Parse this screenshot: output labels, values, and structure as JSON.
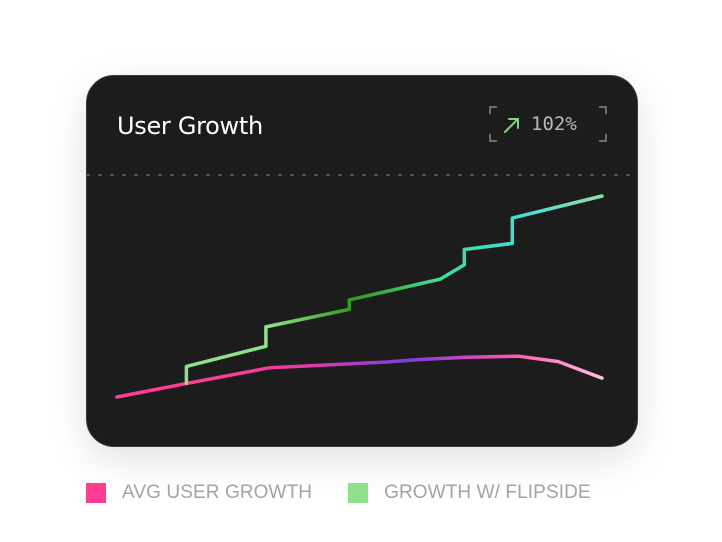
{
  "card": {
    "title": "User Growth",
    "badge": {
      "value": "102%",
      "icon": "arrow-up-right-icon",
      "icon_color": "#7ed67e",
      "frame_color": "#8a8a8a"
    }
  },
  "legend": {
    "items": [
      {
        "label": "AVG USER GROWTH",
        "color": "#ff3d95"
      },
      {
        "label": "GROWTH W/ FLIPSIDE",
        "color": "#8fe08a"
      }
    ]
  },
  "chart_data": {
    "type": "line",
    "title": "User Growth",
    "xlabel": "",
    "ylabel": "",
    "grid": false,
    "legend_placement": "bottom-left",
    "xlim": [
      0,
      100
    ],
    "ylim": [
      0,
      100
    ],
    "series": [
      {
        "name": "AVG USER GROWTH",
        "color": "#ff3d95",
        "gradient": [
          "#ff3d95",
          "#ff3d95",
          "#e23aa8",
          "#7a3ee0",
          "#ff4fb0",
          "#ffc0dc"
        ],
        "points": [
          [
            0,
            0
          ],
          [
            14.5,
            6.8
          ],
          [
            31.5,
            14.6
          ],
          [
            55.6,
            17.4
          ],
          [
            62,
            18.6
          ],
          [
            72,
            19.8
          ],
          [
            82.8,
            20.3
          ],
          [
            91,
            17.6
          ],
          [
            100,
            9.4
          ]
        ]
      },
      {
        "name": "GROWTH W/ FLIPSIDE",
        "color": "#8fe08a",
        "gradient": [
          "#8fe08a",
          "#8fe08a",
          "#2f9a1a",
          "#3fdc94",
          "#45dcd8",
          "#8fe0a8"
        ],
        "points": [
          [
            14.3,
            6.8
          ],
          [
            14.3,
            15.2
          ],
          [
            30.7,
            25.2
          ],
          [
            30.7,
            34.9
          ],
          [
            47.9,
            43.6
          ],
          [
            47.9,
            48.3
          ],
          [
            66.6,
            58.6
          ],
          [
            71.6,
            65.7
          ],
          [
            71.6,
            73.4
          ],
          [
            81.5,
            76.4
          ],
          [
            81.5,
            89
          ],
          [
            100,
            100
          ]
        ]
      }
    ]
  }
}
